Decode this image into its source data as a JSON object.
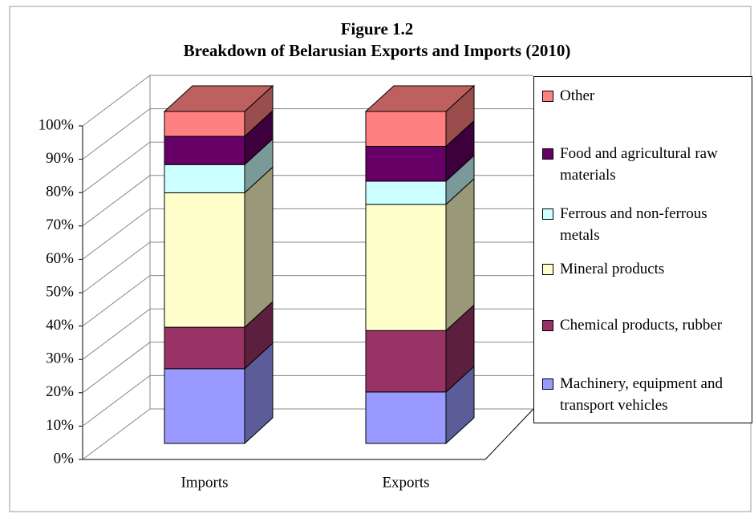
{
  "chart_data": {
    "type": "bar3d_stacked",
    "title": "Figure 1.2",
    "subtitle": "Breakdown of Belarusian Exports and Imports (2010)",
    "categories": [
      "Imports",
      "Exports"
    ],
    "series": [
      {
        "name": "Machinery, equipment and transport vehicles",
        "color": "#9999ff",
        "values": [
          22.5,
          15.5
        ]
      },
      {
        "name": "Chemical products, rubber",
        "color": "#993366",
        "values": [
          12.5,
          18.5
        ]
      },
      {
        "name": "Mineral products",
        "color": "#ffffcc",
        "values": [
          40.5,
          38
        ]
      },
      {
        "name": "Ferrous and non-ferrous metals",
        "color": "#ccffff",
        "values": [
          8.5,
          7
        ]
      },
      {
        "name": "Food and agricultural raw materials",
        "color": "#660066",
        "values": [
          8.5,
          10.5
        ]
      },
      {
        "name": "Other",
        "color": "#ff8080",
        "values": [
          7.5,
          10.5
        ]
      }
    ],
    "ylim": [
      0,
      100
    ],
    "yticks": [
      {
        "value": 0,
        "label": "0%"
      },
      {
        "value": 10,
        "label": "10%"
      },
      {
        "value": 20,
        "label": "20%"
      },
      {
        "value": 30,
        "label": "30%"
      },
      {
        "value": 40,
        "label": "40%"
      },
      {
        "value": 50,
        "label": "50%"
      },
      {
        "value": 60,
        "label": "60%"
      },
      {
        "value": 70,
        "label": "70%"
      },
      {
        "value": 80,
        "label": "80%"
      },
      {
        "value": 90,
        "label": "90%"
      },
      {
        "value": 100,
        "label": "100%"
      }
    ],
    "grid": true,
    "legend": "right"
  }
}
